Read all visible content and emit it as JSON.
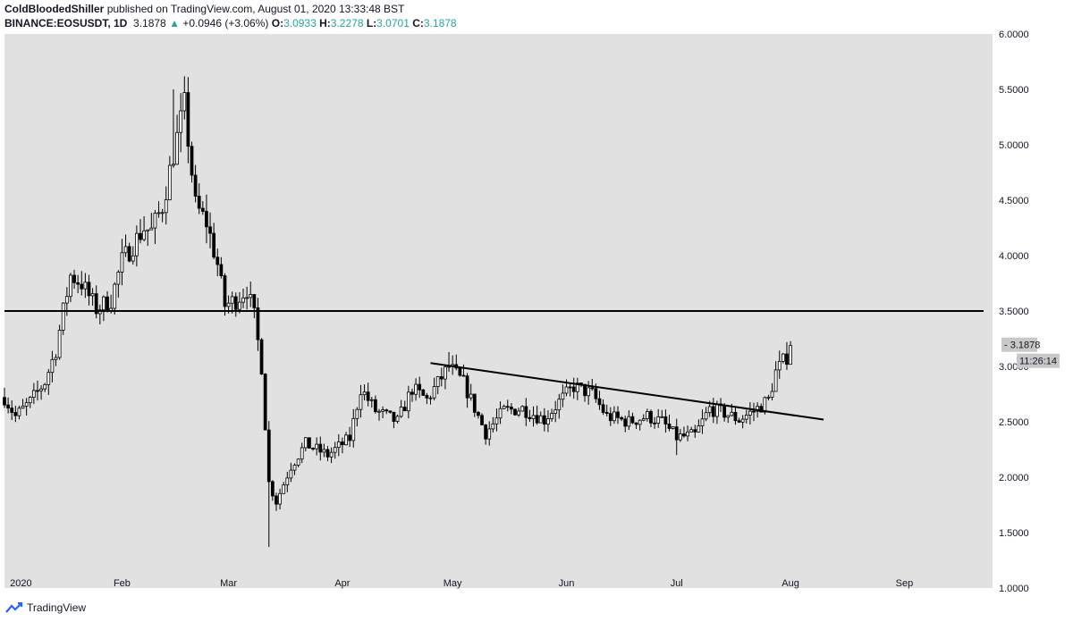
{
  "header": {
    "author": "ColdBloodedShiller",
    "published": "published on TradingView.com, August 01, 2020 13:33:48 BST",
    "symbol": "BINANCE:EOSUSDT, 1D",
    "last": "3.1878",
    "change_arrow": "▲",
    "change": "+0.0946 (+3.06%)",
    "o_label": "O:",
    "o": "3.0933",
    "h_label": "H:",
    "h": "3.2278",
    "l_label": "L:",
    "l": "3.0701",
    "c_label": "C:",
    "c": "3.1878"
  },
  "footer": {
    "brand": "TradingView",
    "logo_icon": "tradingview-logo-icon"
  },
  "colors": {
    "plot_bg": "#e1e1e1",
    "candle": "#ffffff",
    "candle_down": "#000000",
    "wick": "#000000",
    "line": "#000000",
    "up_text": "#26a69a"
  },
  "chart_data": {
    "type": "candlestick",
    "title": "BINANCE:EOSUSDT, 1D",
    "price_scale": {
      "ticks": [
        "1.0000",
        "1.5000",
        "2.0000",
        "2.5000",
        "3.0000",
        "3.5000",
        "4.0000",
        "4.5000",
        "5.0000",
        "5.5000",
        "6.0000"
      ],
      "range": [
        1.0,
        6.0
      ]
    },
    "time_scale": {
      "ticks": [
        "2020",
        "Feb",
        "Mar",
        "Apr",
        "May",
        "Jun",
        "Jul",
        "Aug",
        "Sep"
      ],
      "tick_dates": [
        "2020-01-01",
        "2020-02-01",
        "2020-03-01",
        "2020-04-01",
        "2020-05-01",
        "2020-06-01",
        "2020-07-01",
        "2020-08-01",
        "2020-09-01"
      ],
      "range": [
        "2019-12-31",
        "2020-09-25"
      ]
    },
    "last_price_label": "3.1878",
    "countdown_label": "11:26:14",
    "horizontal_level": 3.5,
    "trendline": {
      "start": [
        "2020-04-25",
        3.03
      ],
      "end": [
        "2020-08-10",
        2.52
      ]
    },
    "anchors": [
      [
        "2019-12-31",
        2.72
      ],
      [
        "2020-01-03",
        2.55
      ],
      [
        "2020-01-07",
        2.68
      ],
      [
        "2020-01-11",
        2.86
      ],
      [
        "2020-01-14",
        3.15
      ],
      [
        "2020-01-16",
        3.5
      ],
      [
        "2020-01-18",
        3.82
      ],
      [
        "2020-01-21",
        3.75
      ],
      [
        "2020-01-25",
        3.52
      ],
      [
        "2020-01-29",
        3.6
      ],
      [
        "2020-02-01",
        3.95
      ],
      [
        "2020-02-03",
        4.05
      ],
      [
        "2020-02-07",
        4.25
      ],
      [
        "2020-02-09",
        4.22
      ],
      [
        "2020-02-12",
        4.45
      ],
      [
        "2020-02-15",
        4.92
      ],
      [
        "2020-02-18",
        5.35
      ],
      [
        "2020-02-21",
        4.45
      ],
      [
        "2020-02-24",
        4.3
      ],
      [
        "2020-02-27",
        3.92
      ],
      [
        "2020-02-29",
        3.55
      ],
      [
        "2020-03-03",
        3.6
      ],
      [
        "2020-03-06",
        3.7
      ],
      [
        "2020-03-08",
        3.45
      ],
      [
        "2020-03-10",
        3.0
      ],
      [
        "2020-03-12",
        1.95
      ],
      [
        "2020-03-14",
        1.78
      ],
      [
        "2020-03-18",
        2.1
      ],
      [
        "2020-03-22",
        2.3
      ],
      [
        "2020-03-28",
        2.2
      ],
      [
        "2020-04-03",
        2.35
      ],
      [
        "2020-04-06",
        2.8
      ],
      [
        "2020-04-10",
        2.6
      ],
      [
        "2020-04-16",
        2.5
      ],
      [
        "2020-04-20",
        2.8
      ],
      [
        "2020-04-24",
        2.7
      ],
      [
        "2020-04-30",
        3.0
      ],
      [
        "2020-05-04",
        2.85
      ],
      [
        "2020-05-10",
        2.4
      ],
      [
        "2020-05-15",
        2.6
      ],
      [
        "2020-05-20",
        2.62
      ],
      [
        "2020-05-26",
        2.52
      ],
      [
        "2020-05-30",
        2.68
      ],
      [
        "2020-06-03",
        2.82
      ],
      [
        "2020-06-08",
        2.75
      ],
      [
        "2020-06-12",
        2.55
      ],
      [
        "2020-06-18",
        2.5
      ],
      [
        "2020-06-23",
        2.55
      ],
      [
        "2020-06-27",
        2.5
      ],
      [
        "2020-07-01",
        2.36
      ],
      [
        "2020-07-06",
        2.38
      ],
      [
        "2020-07-10",
        2.62
      ],
      [
        "2020-07-14",
        2.58
      ],
      [
        "2020-07-18",
        2.52
      ],
      [
        "2020-07-23",
        2.62
      ],
      [
        "2020-07-26",
        2.7
      ],
      [
        "2020-07-28",
        2.95
      ],
      [
        "2020-07-31",
        3.09
      ],
      [
        "2020-08-01",
        3.1878
      ]
    ]
  }
}
